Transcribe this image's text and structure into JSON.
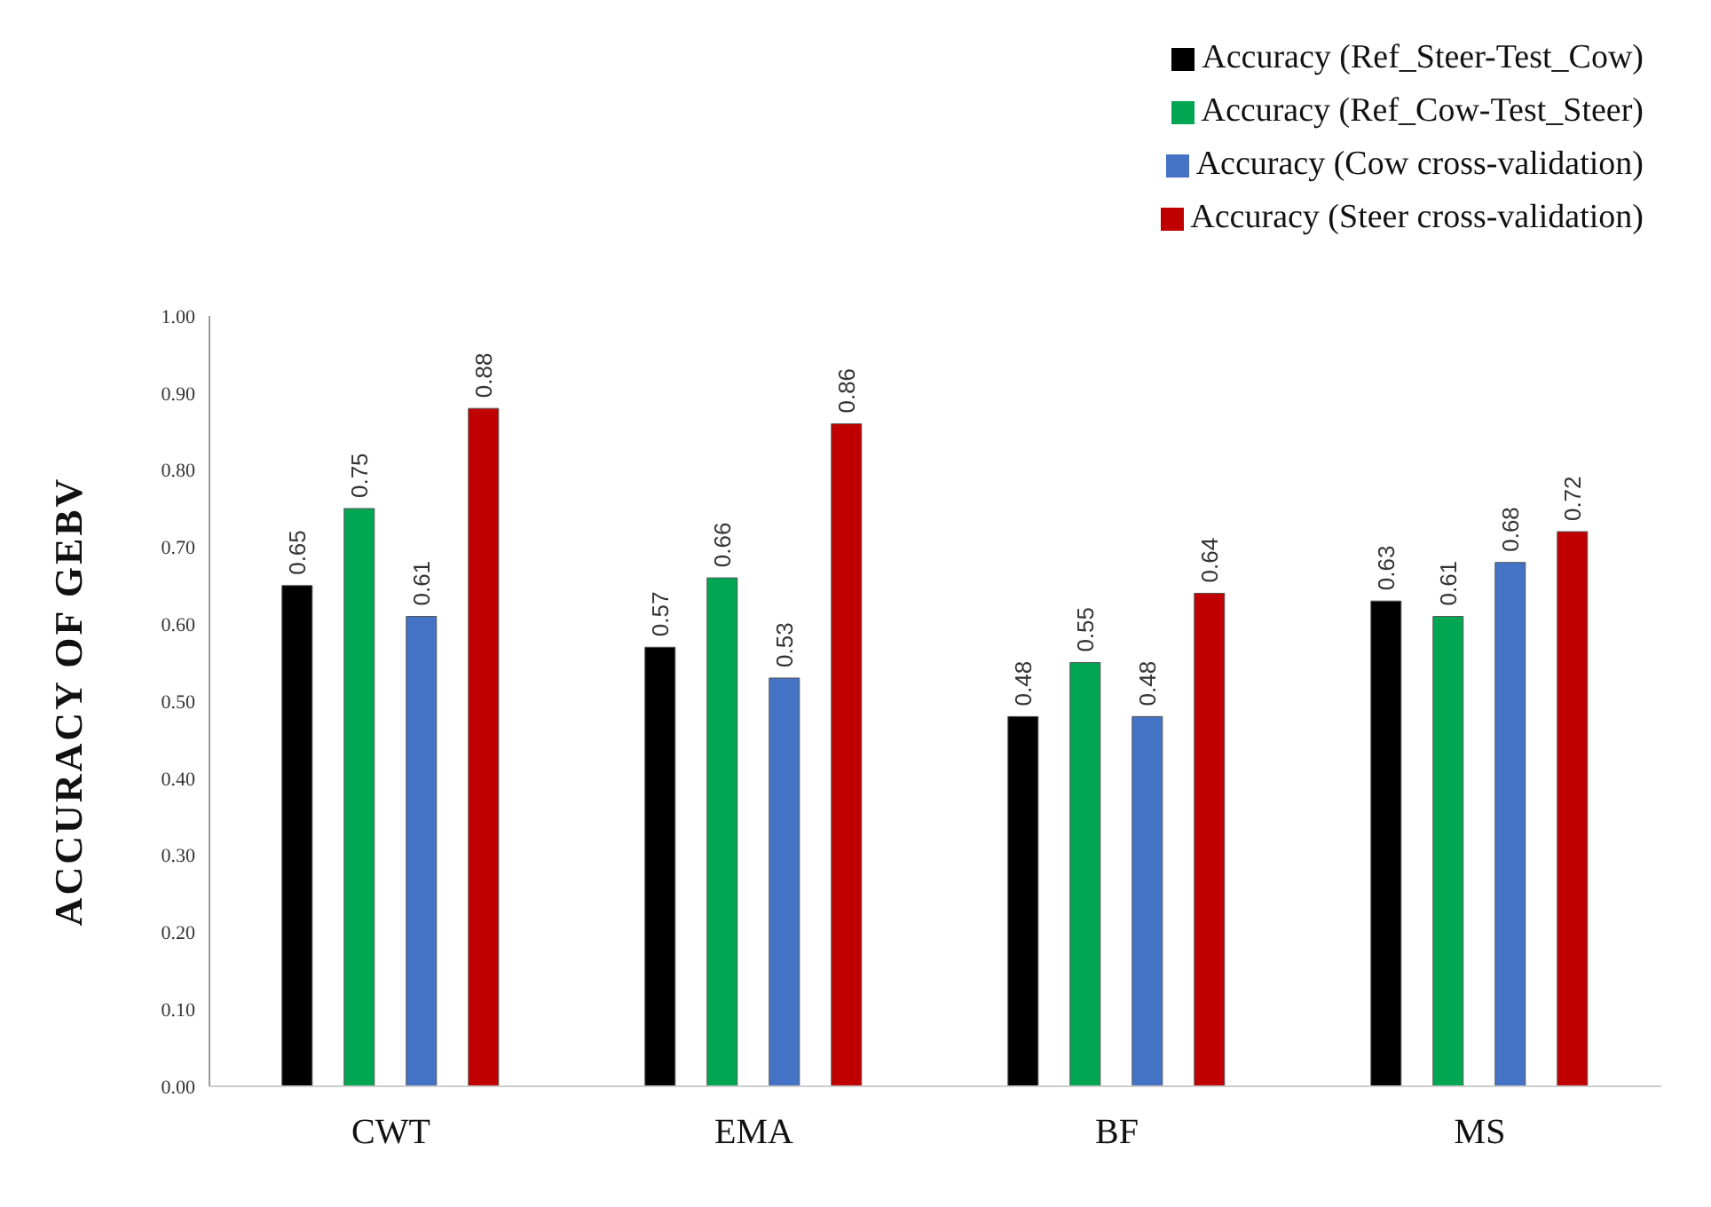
{
  "chart_data": {
    "type": "bar",
    "ylabel": "ACCURACY OF GEBV",
    "categories": [
      "CWT",
      "EMA",
      "BF",
      "MS"
    ],
    "series": [
      {
        "name": "Accuracy (Ref_Steer-Test_Cow)",
        "color": "#000000",
        "values": [
          0.65,
          0.57,
          0.48,
          0.63
        ]
      },
      {
        "name": "Accuracy (Ref_Cow-Test_Steer)",
        "color": "#00a651",
        "values": [
          0.75,
          0.66,
          0.55,
          0.61
        ]
      },
      {
        "name": "Accuracy (Cow cross-validation)",
        "color": "#4472c4",
        "values": [
          0.61,
          0.53,
          0.48,
          0.68
        ]
      },
      {
        "name": "Accuracy (Steer cross-validation)",
        "color": "#c00000",
        "values": [
          0.88,
          0.86,
          0.64,
          0.72
        ]
      }
    ],
    "ylim": [
      0,
      1
    ],
    "yticks": [
      {
        "value": 0,
        "label": "0.00"
      },
      {
        "value": 0.1,
        "label": "0.10"
      },
      {
        "value": 0.2,
        "label": "0.20"
      },
      {
        "value": 0.3,
        "label": "0.30"
      },
      {
        "value": 0.4,
        "label": "0.40"
      },
      {
        "value": 0.5,
        "label": "0.50"
      },
      {
        "value": 0.6,
        "label": "0.60"
      },
      {
        "value": 0.7,
        "label": "0.70"
      },
      {
        "value": 0.8,
        "label": "0.80"
      },
      {
        "value": 0.9,
        "label": "0.90"
      },
      {
        "value": 1,
        "label": "1.00"
      }
    ],
    "data_labels": true,
    "grid": false,
    "legend": "top right"
  }
}
